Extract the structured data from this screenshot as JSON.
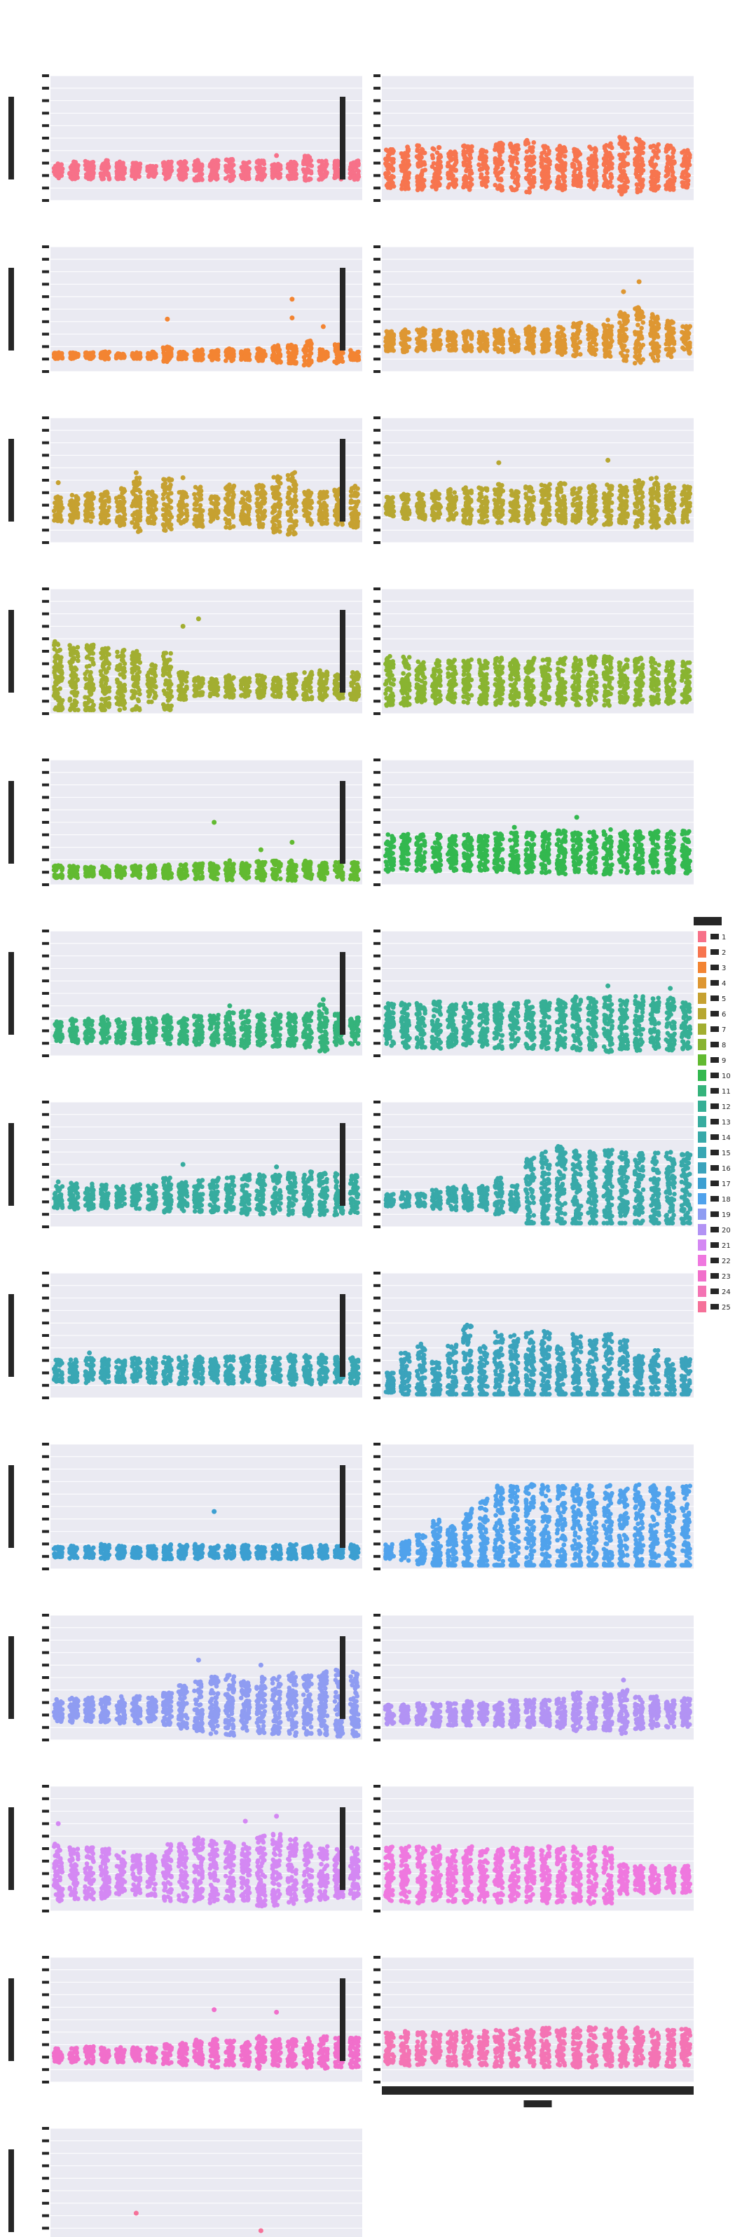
{
  "figure": {
    "title": "",
    "background": "#ffffff",
    "panel_background": "#eaeaf2",
    "grid_color": "#ffffff",
    "text_color": "#262626"
  },
  "chart_data": {
    "type": "scatter",
    "subtype": "strip plot (faceted)",
    "grid": true,
    "legend_placement": "right",
    "ylim": [
      0,
      10
    ],
    "categories": [
      "1",
      "2",
      "3",
      "4",
      "5",
      "6",
      "7",
      "8",
      "9",
      "10",
      "11",
      "12",
      "13",
      "14",
      "15",
      "16",
      "17",
      "18",
      "19",
      "20"
    ],
    "xlabel": "",
    "ylabel": "",
    "panels": [
      {
        "title": "",
        "color": "#f77189",
        "hue": "1",
        "base": 2.2,
        "spread": [
          1.2,
          1.4,
          1.5,
          1.6,
          1.4,
          1.3,
          1.0,
          1.4,
          1.5,
          1.7,
          1.6,
          1.8,
          1.4,
          1.6,
          1.2,
          1.4,
          2.1,
          1.5,
          1.6,
          1.6
        ],
        "outliers": [
          [
            1,
            2.8
          ],
          [
            15,
            3.6
          ]
        ]
      },
      {
        "title": "",
        "color": "#f7754f",
        "hue": "2",
        "base": 2.1,
        "spread": [
          3.2,
          3.5,
          3.6,
          3.4,
          3.0,
          3.6,
          3.0,
          4.0,
          3.8,
          4.2,
          3.6,
          3.6,
          3.2,
          3.4,
          3.8,
          4.6,
          4.4,
          3.8,
          3.6,
          3.0
        ],
        "outliers": []
      },
      {
        "title": "",
        "color": "#f38432",
        "hue": "3",
        "base": 1.2,
        "spread": [
          0.5,
          0.5,
          0.5,
          0.6,
          0.4,
          0.5,
          0.6,
          1.2,
          0.6,
          0.9,
          0.8,
          1.0,
          0.8,
          1.0,
          1.4,
          1.6,
          2.0,
          0.9,
          1.5,
          0.8
        ],
        "outliers": [
          [
            8,
            4.2
          ],
          [
            16,
            5.8
          ],
          [
            16,
            4.3
          ],
          [
            18,
            3.6
          ]
        ]
      },
      {
        "title": "",
        "color": "#de9732",
        "hue": "4",
        "base": 2.2,
        "spread": [
          1.6,
          1.8,
          2.0,
          1.8,
          1.5,
          1.6,
          1.6,
          2.0,
          1.8,
          2.2,
          1.8,
          2.4,
          2.8,
          2.4,
          3.0,
          4.0,
          4.6,
          3.8,
          3.0,
          2.2
        ],
        "outliers": [
          [
            16,
            6.4
          ],
          [
            17,
            7.2
          ]
        ]
      },
      {
        "title": "",
        "color": "#c6a131",
        "hue": "5",
        "base": 2.4,
        "spread": [
          2.0,
          2.2,
          2.4,
          2.6,
          3.0,
          4.4,
          2.6,
          4.2,
          2.6,
          3.2,
          2.0,
          3.6,
          2.6,
          3.4,
          4.6,
          5.0,
          2.8,
          2.6,
          3.0,
          3.4
        ],
        "outliers": [
          [
            1,
            4.8
          ],
          [
            6,
            5.6
          ],
          [
            9,
            5.2
          ]
        ]
      },
      {
        "title": "",
        "color": "#b7a731",
        "hue": "6",
        "base": 2.6,
        "spread": [
          1.6,
          2.0,
          2.2,
          2.4,
          2.6,
          3.0,
          2.8,
          3.2,
          2.6,
          3.0,
          3.2,
          3.4,
          2.8,
          3.2,
          3.4,
          3.0,
          3.8,
          4.0,
          3.2,
          3.0
        ],
        "outliers": [
          [
            8,
            6.4
          ],
          [
            15,
            6.6
          ]
        ]
      },
      {
        "title": "",
        "color": "#a2ae31",
        "hue": "7",
        "base": 1.9,
        "spread": [
          6.0,
          5.6,
          5.6,
          5.2,
          5.0,
          4.8,
          3.2,
          4.6,
          2.2,
          1.6,
          1.4,
          1.8,
          1.6,
          1.8,
          1.6,
          2.0,
          2.2,
          2.4,
          2.2,
          2.2
        ],
        "outliers": [
          [
            9,
            7.0
          ],
          [
            10,
            7.6
          ]
        ]
      },
      {
        "title": "",
        "color": "#89b431",
        "hue": "8",
        "base": 2.0,
        "spread": [
          4.0,
          4.0,
          3.4,
          3.6,
          3.6,
          3.6,
          3.6,
          3.8,
          3.8,
          3.8,
          3.8,
          3.8,
          3.8,
          4.0,
          4.0,
          3.6,
          3.8,
          3.8,
          3.4,
          3.4
        ],
        "outliers": []
      },
      {
        "title": "",
        "color": "#62ba31",
        "hue": "9",
        "base": 0.9,
        "spread": [
          1.0,
          1.0,
          0.9,
          0.9,
          1.0,
          1.0,
          1.0,
          1.1,
          1.2,
          1.3,
          1.3,
          1.6,
          1.3,
          1.6,
          1.6,
          1.6,
          1.6,
          1.4,
          1.4,
          1.4
        ],
        "outliers": [
          [
            11,
            5.0
          ],
          [
            14,
            2.8
          ],
          [
            16,
            3.4
          ]
        ]
      },
      {
        "title": "",
        "color": "#33b84f",
        "hue": "10",
        "base": 2.1,
        "spread": [
          3.0,
          3.0,
          3.0,
          3.0,
          2.8,
          3.0,
          2.8,
          3.2,
          3.2,
          3.2,
          3.4,
          3.6,
          3.2,
          3.4,
          3.6,
          3.4,
          3.4,
          3.4,
          3.4,
          3.4
        ],
        "outliers": [
          [
            9,
            4.6
          ],
          [
            13,
            5.4
          ]
        ]
      },
      {
        "title": "",
        "color": "#35b37b",
        "hue": "11",
        "base": 1.7,
        "spread": [
          1.6,
          2.0,
          2.0,
          2.2,
          2.0,
          2.0,
          2.0,
          2.4,
          2.2,
          2.4,
          2.4,
          2.8,
          3.0,
          2.6,
          2.8,
          2.6,
          3.0,
          3.8,
          2.6,
          2.4
        ],
        "outliers": [
          [
            12,
            4.0
          ],
          [
            18,
            4.5
          ]
        ]
      },
      {
        "title": "",
        "color": "#36af95",
        "hue": "12",
        "base": 1.9,
        "spread": [
          3.6,
          3.6,
          3.6,
          3.8,
          3.4,
          3.6,
          3.4,
          3.8,
          3.6,
          3.8,
          3.8,
          4.0,
          4.4,
          4.2,
          4.6,
          4.0,
          4.4,
          4.2,
          4.2,
          4.0
        ],
        "outliers": [
          [
            15,
            5.6
          ],
          [
            19,
            5.4
          ]
        ]
      },
      {
        "title": "",
        "color": "#37ac9f",
        "hue": "13",
        "base": 2.1,
        "spread": [
          1.8,
          2.2,
          2.2,
          2.0,
          1.8,
          2.0,
          2.0,
          2.8,
          2.4,
          2.6,
          2.8,
          3.0,
          3.2,
          3.2,
          3.2,
          3.4,
          3.6,
          3.4,
          3.4,
          3.2
        ],
        "outliers": [
          [
            1,
            3.6
          ],
          [
            9,
            5.0
          ],
          [
            15,
            4.8
          ]
        ]
      },
      {
        "title": "",
        "color": "#38a9a9",
        "hue": "14",
        "base": 2.0,
        "spread": [
          1.0,
          1.2,
          1.0,
          1.6,
          2.0,
          2.0,
          2.0,
          3.0,
          2.2,
          5.8,
          6.2,
          7.0,
          6.4,
          6.4,
          6.4,
          6.2,
          6.0,
          6.2,
          6.2,
          6.0
        ],
        "outliers": []
      },
      {
        "title": "",
        "color": "#39a7b4",
        "hue": "15",
        "base": 1.9,
        "spread": [
          1.8,
          1.8,
          2.0,
          2.0,
          1.8,
          2.0,
          2.0,
          2.2,
          2.2,
          2.2,
          2.0,
          2.2,
          2.2,
          2.4,
          2.0,
          2.4,
          2.4,
          2.4,
          2.2,
          2.2
        ],
        "outliers": [
          [
            3,
            3.6
          ],
          [
            13,
            3.2
          ]
        ]
      },
      {
        "title": "",
        "color": "#3ba3bc",
        "hue": "16",
        "base": 1.0,
        "spread": [
          1.6,
          4.0,
          5.2,
          3.0,
          5.0,
          7.6,
          5.0,
          6.6,
          6.4,
          6.6,
          6.8,
          4.8,
          6.4,
          5.6,
          6.4,
          5.6,
          3.8,
          4.4,
          3.2,
          3.4
        ],
        "outliers": []
      },
      {
        "title": "",
        "color": "#3c9fd1",
        "hue": "17",
        "base": 1.2,
        "spread": [
          0.9,
          1.0,
          0.9,
          1.2,
          1.0,
          0.9,
          1.0,
          1.2,
          1.1,
          1.2,
          1.0,
          1.0,
          1.1,
          1.0,
          1.2,
          1.2,
          1.0,
          1.1,
          1.0,
          1.2
        ],
        "outliers": [
          [
            11,
            4.6
          ]
        ]
      },
      {
        "title": "",
        "color": "#50a2ec",
        "hue": "18",
        "base": 1.2,
        "spread": [
          1.2,
          1.6,
          2.4,
          4.2,
          3.6,
          5.6,
          6.8,
          8.4,
          8.4,
          8.6,
          8.6,
          8.6,
          8.6,
          8.6,
          8.6,
          8.6,
          8.6,
          8.6,
          8.4,
          8.4
        ],
        "outliers": []
      },
      {
        "title": "",
        "color": "#8f9cf2",
        "hue": "19",
        "base": 2.1,
        "spread": [
          1.8,
          2.0,
          2.0,
          2.0,
          2.2,
          2.2,
          2.0,
          2.6,
          3.6,
          4.0,
          4.6,
          5.0,
          4.0,
          4.6,
          4.6,
          5.2,
          4.8,
          5.2,
          5.4,
          5.2
        ],
        "outliers": [
          [
            10,
            6.4
          ],
          [
            14,
            6.0
          ]
        ]
      },
      {
        "title": "",
        "color": "#b293f4",
        "hue": "20",
        "base": 1.8,
        "spread": [
          1.6,
          1.6,
          1.8,
          2.0,
          1.8,
          2.0,
          1.8,
          2.0,
          2.2,
          2.2,
          2.2,
          2.4,
          3.2,
          2.6,
          3.0,
          3.8,
          2.6,
          2.6,
          2.4,
          2.4
        ],
        "outliers": [
          [
            16,
            4.8
          ]
        ]
      },
      {
        "title": "",
        "color": "#d488f3",
        "hue": "21",
        "base": 2.4,
        "spread": [
          4.6,
          4.2,
          4.2,
          4.0,
          3.6,
          3.2,
          3.4,
          4.6,
          4.6,
          5.4,
          5.0,
          4.8,
          4.6,
          5.8,
          5.8,
          5.2,
          4.6,
          4.4,
          4.0,
          4.2
        ],
        "outliers": [
          [
            1,
            7.0
          ],
          [
            13,
            7.2
          ],
          [
            15,
            7.6
          ]
        ]
      },
      {
        "title": "",
        "color": "#ef78df",
        "hue": "22",
        "base": 2.2,
        "spread": [
          4.6,
          4.6,
          4.6,
          4.6,
          4.2,
          4.6,
          4.2,
          4.4,
          4.4,
          4.4,
          4.6,
          4.4,
          4.6,
          4.6,
          4.6,
          2.4,
          2.4,
          2.2,
          2.2,
          2.2
        ],
        "outliers": []
      },
      {
        "title": "",
        "color": "#f16fcb",
        "hue": "23",
        "base": 2.0,
        "spread": [
          1.2,
          1.2,
          1.4,
          1.2,
          1.2,
          1.2,
          1.2,
          1.6,
          1.8,
          2.2,
          2.4,
          2.0,
          2.0,
          2.6,
          2.2,
          2.2,
          2.4,
          2.6,
          2.4,
          2.4
        ],
        "outliers": [
          [
            11,
            5.8
          ],
          [
            15,
            5.6
          ]
        ]
      },
      {
        "title": "",
        "color": "#f474b4",
        "hue": "24",
        "base": 2.3,
        "spread": [
          2.6,
          2.8,
          2.6,
          2.6,
          2.8,
          2.8,
          2.8,
          3.0,
          3.0,
          3.0,
          3.2,
          3.0,
          3.2,
          3.2,
          3.0,
          3.2,
          3.2,
          3.0,
          3.0,
          3.0
        ],
        "outliers": []
      },
      {
        "title": "",
        "color": "#f57199",
        "hue": "25",
        "base": 0.6,
        "spread": [
          0.4,
          0.4,
          0.4,
          0.4,
          0.4,
          0.4,
          0.4,
          0.4,
          0.4,
          0.4,
          0.4,
          0.4,
          0.4,
          0.4,
          0.4,
          0.4,
          0.4,
          0.4,
          0.4,
          0.4
        ],
        "outliers": [
          [
            6,
            3.2
          ],
          [
            14,
            1.8
          ]
        ]
      }
    ],
    "legend": {
      "title": "",
      "entries": [
        "1",
        "2",
        "3",
        "4",
        "5",
        "6",
        "7",
        "8",
        "9",
        "10",
        "11",
        "12",
        "13",
        "14",
        "15",
        "16",
        "17",
        "18",
        "19",
        "20",
        "21",
        "22",
        "23",
        "24",
        "25"
      ]
    }
  }
}
